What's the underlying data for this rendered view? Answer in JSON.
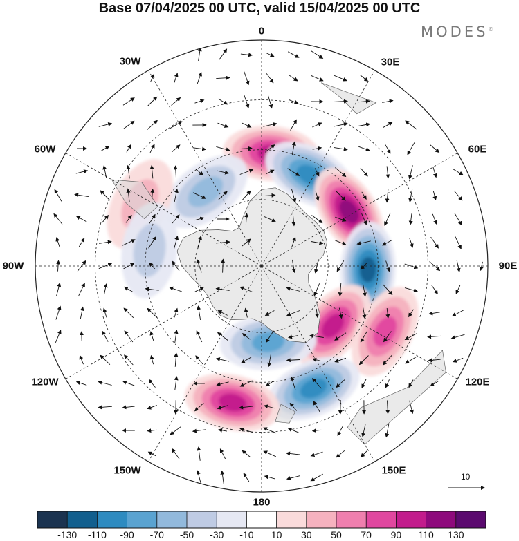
{
  "title": "Base 07/04/2025 00 UTC, valid 15/04/2025 00 UTC",
  "brand": "MODES",
  "brand_mark": "©",
  "longitude_labels": {
    "n0": "0",
    "e30": "30E",
    "e60": "60E",
    "e90": "90E",
    "e120": "120E",
    "e150": "150E",
    "s180": "180",
    "w150": "150W",
    "w120": "120W",
    "w90": "90W",
    "w60": "60W",
    "w30": "30W"
  },
  "reference_vector": {
    "label": "10"
  },
  "colorbar": {
    "colors": [
      "#1b3350",
      "#125f8e",
      "#2e8bc0",
      "#5aa3d1",
      "#92b9dc",
      "#bfcbe4",
      "#e6e8f3",
      "#ffffff",
      "#fadbdb",
      "#f6b2bf",
      "#ef7fae",
      "#e0479f",
      "#c21c8c",
      "#8e0a7c",
      "#5b0a6f"
    ],
    "tick_labels": [
      "-130",
      "-110",
      "-90",
      "-70",
      "-50",
      "-30",
      "-10",
      "10",
      "30",
      "50",
      "70",
      "90",
      "110",
      "130"
    ]
  },
  "map": {
    "projection": "south-polar-stereographic",
    "anomaly_centers": [
      {
        "name": "positive-center-south-atlantic",
        "lon": 5,
        "colat_deg": 34,
        "value": 95
      },
      {
        "name": "negative-center-southeast-atlantic",
        "lon": 28,
        "colat_deg": 31,
        "value": -100
      },
      {
        "name": "positive-center-indian-ocean",
        "lon": 58,
        "colat_deg": 31,
        "value": 115
      },
      {
        "name": "negative-center-southern-indian-ocean",
        "lon": 92,
        "colat_deg": 32,
        "value": -125
      },
      {
        "name": "positive-center-south-australia",
        "lon": 130,
        "colat_deg": 28,
        "value": 95
      },
      {
        "name": "positive-center-tasman",
        "lon": 118,
        "colat_deg": 42,
        "value": 70
      },
      {
        "name": "negative-center-new-zealand",
        "lon": 157,
        "colat_deg": 40,
        "value": -95
      },
      {
        "name": "negative-center-ross-sea",
        "lon": 175,
        "colat_deg": 23,
        "value": -80
      },
      {
        "name": "positive-center-south-pacific",
        "lon": 192,
        "colat_deg": 42,
        "value": 100
      },
      {
        "name": "negative-center-weddell",
        "lon": 323,
        "colat_deg": 28,
        "value": -50
      },
      {
        "name": "positive-center-south-america",
        "lon": 297,
        "colat_deg": 41,
        "value": 40
      },
      {
        "name": "negative-center-amundsen",
        "lon": 278,
        "colat_deg": 34,
        "value": -30
      }
    ]
  }
}
